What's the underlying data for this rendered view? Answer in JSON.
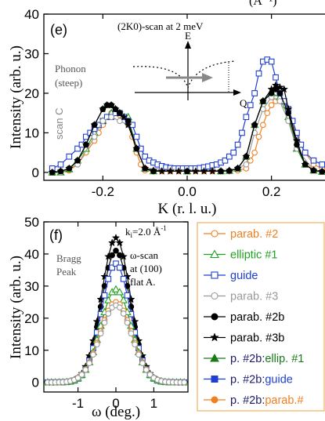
{
  "chart_data": [
    {
      "panel": "(e)",
      "type": "line",
      "title": "(2K0)-scan at 2 meV",
      "top_cut_text": "(Å⁻¹)",
      "xlabel": "K (r. l. u.)",
      "ylabel": "Intensity (arb. u.)",
      "xlim": [
        -0.34,
        0.34
      ],
      "ylim": [
        -2,
        40
      ],
      "xticks": [
        -0.2,
        0.0,
        0.2
      ],
      "xtick_labels": [
        "-0.2",
        "0.0",
        "0.2"
      ],
      "yticks": [
        0,
        10,
        20,
        30,
        40
      ],
      "ytick_labels": [
        "0",
        "10",
        "20",
        "30",
        "40"
      ],
      "annotations": {
        "phonon": [
          "Phonon",
          "(steep)"
        ],
        "scan": "scan C",
        "inset_E": "E",
        "inset_Q": "Q"
      },
      "series": [
        {
          "name": "parab. #2",
          "color": "#f08020",
          "marker": "circle-open",
          "line": "solid",
          "x": [
            -0.32,
            -0.3,
            -0.28,
            -0.26,
            -0.24,
            -0.22,
            -0.21,
            -0.2,
            -0.19,
            -0.18,
            -0.17,
            -0.16,
            -0.15,
            -0.14,
            -0.13,
            -0.12,
            -0.11,
            -0.1,
            -0.08,
            -0.06,
            -0.04,
            -0.02,
            0.0,
            0.02,
            0.04,
            0.06,
            0.08,
            0.1,
            0.12,
            0.14,
            0.15,
            0.16,
            0.17,
            0.18,
            0.19,
            0.2,
            0.21,
            0.22,
            0.23,
            0.24,
            0.25,
            0.26,
            0.28,
            0.3,
            0.32,
            0.34
          ],
          "y": [
            0,
            0,
            0.5,
            2,
            5,
            8,
            10,
            12,
            14,
            15,
            15,
            14.5,
            14,
            13,
            9,
            5,
            2,
            0.5,
            0.3,
            0.3,
            0.3,
            0.3,
            0.3,
            0.3,
            0.3,
            0.3,
            0.3,
            0.3,
            0.5,
            1,
            3,
            5,
            9,
            12,
            15,
            17,
            18,
            18,
            17,
            15,
            13,
            9,
            5,
            2,
            1,
            0.5
          ]
        },
        {
          "name": "elliptic #1",
          "color": "#20a020",
          "marker": "triangle-open",
          "line": "solid",
          "x": [
            -0.32,
            -0.3,
            -0.28,
            -0.26,
            -0.24,
            -0.22,
            -0.2,
            -0.18,
            -0.16,
            -0.14,
            -0.12,
            -0.1,
            -0.08,
            0.0,
            0.08,
            0.1,
            0.12,
            0.14,
            0.16,
            0.18,
            0.2,
            0.22,
            0.24,
            0.26,
            0.28,
            0.3,
            0.32
          ],
          "y": [
            0,
            0,
            0.8,
            3,
            6,
            10,
            13,
            15,
            15,
            14,
            6,
            1,
            0.3,
            0.3,
            0.3,
            0.4,
            1,
            4,
            12,
            18,
            20,
            19,
            14,
            6,
            2,
            0.5,
            0.2
          ]
        },
        {
          "name": "guide",
          "color": "#1f3fd0",
          "marker": "square-open",
          "line": "solid",
          "x": [
            -0.32,
            -0.3,
            -0.28,
            -0.26,
            -0.25,
            -0.24,
            -0.23,
            -0.22,
            -0.21,
            -0.2,
            -0.19,
            -0.18,
            -0.17,
            -0.16,
            -0.15,
            -0.14,
            -0.13,
            -0.12,
            -0.11,
            -0.1,
            -0.09,
            -0.08,
            -0.07,
            -0.06,
            -0.05,
            -0.04,
            -0.03,
            -0.02,
            -0.01,
            0.0,
            0.01,
            0.02,
            0.03,
            0.04,
            0.05,
            0.06,
            0.07,
            0.08,
            0.09,
            0.1,
            0.11,
            0.12,
            0.13,
            0.14,
            0.15,
            0.16,
            0.17,
            0.18,
            0.19,
            0.2,
            0.21,
            0.22,
            0.23,
            0.24,
            0.25,
            0.26,
            0.27,
            0.28,
            0.3,
            0.32,
            0.34
          ],
          "y": [
            1,
            2,
            4,
            6,
            7,
            9,
            10,
            11,
            12,
            13,
            14,
            14,
            15,
            15,
            14,
            13,
            12,
            9,
            6,
            4,
            3,
            2.5,
            2,
            1.6,
            1.3,
            1.1,
            1,
            1,
            1,
            1,
            1,
            1,
            1.1,
            1.3,
            1.5,
            1.8,
            2,
            2.5,
            3,
            4,
            5,
            7,
            10,
            14,
            17,
            20,
            25,
            28,
            28.5,
            28,
            24,
            20,
            18,
            16,
            13,
            10,
            7,
            5,
            3,
            2,
            1
          ]
        },
        {
          "name": "parab. #3",
          "color": "#9a9a9a",
          "marker": "circle-open",
          "line": "solid",
          "x": [
            -0.3,
            -0.26,
            -0.22,
            -0.2,
            -0.18,
            -0.16,
            -0.14,
            -0.12,
            -0.1,
            0.1,
            0.14,
            0.16,
            0.18,
            0.2,
            0.22,
            0.24,
            0.26,
            0.3
          ],
          "y": [
            0,
            2,
            9,
            13,
            14,
            13,
            12,
            6,
            1,
            0.3,
            2,
            10,
            16,
            19,
            18,
            13,
            6,
            0.5
          ]
        },
        {
          "name": "parab. #2b",
          "color": "#000000",
          "marker": "circle-filled",
          "line": "solid",
          "x": [
            -0.32,
            -0.3,
            -0.28,
            -0.26,
            -0.24,
            -0.22,
            -0.2,
            -0.19,
            -0.18,
            -0.17,
            -0.16,
            -0.14,
            -0.12,
            -0.1,
            -0.08,
            0.0,
            0.08,
            0.1,
            0.12,
            0.14,
            0.16,
            0.18,
            0.2,
            0.21,
            0.22,
            0.24,
            0.26,
            0.28,
            0.3,
            0.32
          ],
          "y": [
            0,
            0.3,
            1,
            3,
            7,
            12,
            16,
            17,
            17,
            16,
            15,
            13,
            6,
            1,
            0.3,
            0.3,
            0.3,
            0.4,
            1,
            4,
            12,
            18,
            20,
            21,
            20,
            15,
            7,
            2,
            0.5,
            0.2
          ]
        },
        {
          "name": "parab. #3b",
          "color": "#000000",
          "marker": "star",
          "line": "solid",
          "x": [
            -0.32,
            -0.3,
            -0.28,
            -0.26,
            -0.24,
            -0.22,
            -0.2,
            -0.19,
            -0.18,
            -0.17,
            -0.16,
            -0.15,
            -0.14,
            -0.12,
            -0.1,
            -0.08,
            -0.06,
            -0.04,
            -0.02,
            0.0,
            0.02,
            0.04,
            0.06,
            0.08,
            0.1,
            0.12,
            0.14,
            0.16,
            0.18,
            0.2,
            0.21,
            0.22,
            0.23,
            0.24,
            0.26,
            0.28,
            0.3,
            0.32,
            0.34
          ],
          "y": [
            0,
            0.3,
            1,
            3,
            7,
            12,
            16,
            17,
            17,
            16,
            15,
            14,
            12,
            6,
            1,
            0.5,
            0.3,
            0.3,
            0.3,
            0.3,
            0.3,
            0.3,
            0.3,
            0.3,
            0.5,
            1,
            4,
            12,
            18,
            21,
            22,
            21.5,
            21,
            16,
            8,
            2,
            0.5,
            0.2,
            0
          ]
        }
      ]
    },
    {
      "panel": "(f)",
      "type": "line",
      "xlabel": "ω (deg.)",
      "ylabel": "Intensity (arb. u.)",
      "xlim": [
        -1.9,
        1.9
      ],
      "ylim": [
        -3,
        50
      ],
      "xticks": [
        -1,
        0,
        1
      ],
      "xtick_labels": [
        "-1",
        "0",
        "1"
      ],
      "yticks": [
        0,
        10,
        20,
        30,
        40,
        50
      ],
      "ytick_labels": [
        "0",
        "10",
        "20",
        "30",
        "40",
        "50"
      ],
      "annotations": {
        "ki_prefix": "k",
        "ki_sub": "i",
        "ki_value": "=2.0 Å",
        "ki_exp": "-1",
        "bragg": [
          "Bragg",
          "Peak"
        ],
        "scan": [
          "ω-scan",
          "at (100)",
          "flat A."
        ]
      },
      "x": [
        -1.8,
        -1.7,
        -1.6,
        -1.5,
        -1.4,
        -1.3,
        -1.2,
        -1.1,
        -1.0,
        -0.9,
        -0.8,
        -0.7,
        -0.6,
        -0.5,
        -0.4,
        -0.3,
        -0.2,
        -0.1,
        0.0,
        0.1,
        0.2,
        0.3,
        0.4,
        0.5,
        0.6,
        0.7,
        0.8,
        0.9,
        1.0,
        1.1,
        1.2,
        1.3,
        1.4,
        1.5,
        1.6,
        1.7,
        1.8
      ],
      "series": [
        {
          "name": "parab. #3b",
          "color": "#000000",
          "marker": "star",
          "peak": 45,
          "width": 0.38
        },
        {
          "name": "parab. #2b",
          "color": "#000000",
          "marker": "circle-filled",
          "peak": 41,
          "width": 0.38
        },
        {
          "name": "guide",
          "color": "#1f3fd0",
          "marker": "square-open",
          "peak": 37,
          "width": 0.38
        },
        {
          "name": "elliptic #1",
          "color": "#20a020",
          "marker": "triangle-open",
          "peak": 29,
          "width": 0.4
        },
        {
          "name": "parab. #2",
          "color": "#f08020",
          "marker": "circle-open",
          "peak": 25,
          "width": 0.42
        },
        {
          "name": "parab. #3",
          "color": "#9a9a9a",
          "marker": "circle-open",
          "peak": 24,
          "width": 0.42
        }
      ]
    }
  ],
  "legend": [
    {
      "label": "parab. #2",
      "color": "#f08020",
      "text_color": "#f08020",
      "marker": "circle-open"
    },
    {
      "label": "elliptic #1",
      "color": "#20a020",
      "text_color": "#20a020",
      "marker": "triangle-open"
    },
    {
      "label": "guide",
      "color": "#1f3fd0",
      "text_color": "#1f3fd0",
      "marker": "square-open"
    },
    {
      "label": "parab. #3",
      "color": "#9a9a9a",
      "text_color": "#9a9a9a",
      "marker": "circle-open"
    },
    {
      "label": "parab. #2b",
      "color": "#000000",
      "text_color": "#000000",
      "marker": "circle-filled"
    },
    {
      "label": "parab. #3b",
      "color": "#000000",
      "text_color": "#000000",
      "marker": "star"
    },
    {
      "prefix": "p. #2b:",
      "label": "ellip. #1",
      "color": "#1a7a1a",
      "text_color": "#1a7a1a",
      "marker": "triangle-filled"
    },
    {
      "prefix": "p. #2b:",
      "label": "guide",
      "color": "#1f3fd0",
      "text_color": "#1f3fd0",
      "marker": "square-filled"
    },
    {
      "prefix": "p. #2b:",
      "label": "parab.#",
      "color": "#f08020",
      "text_color": "#f08020",
      "marker": "circle-filled"
    }
  ]
}
